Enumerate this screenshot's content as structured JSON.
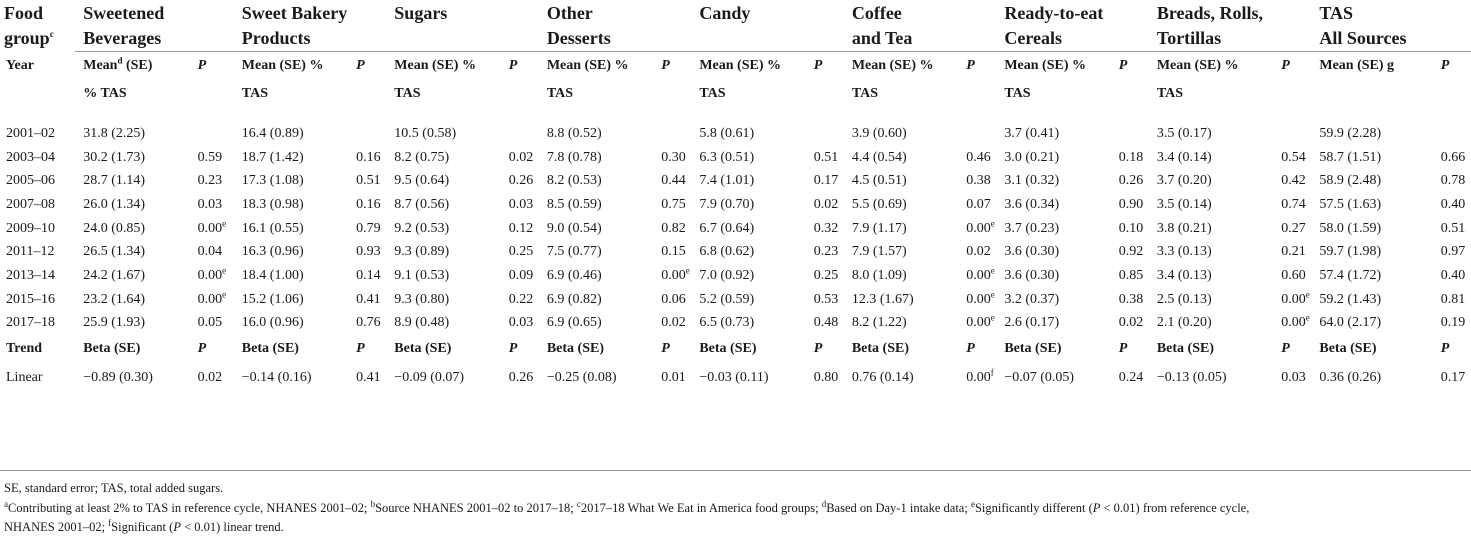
{
  "table": {
    "group_header": {
      "first_label_line1": "Food",
      "first_label_line2": "group",
      "first_label_sup": "c",
      "groups": [
        {
          "line1": "Sweetened",
          "line2": "Beverages"
        },
        {
          "line1": "Sweet Bakery",
          "line2": "Products"
        },
        {
          "line1": "Sugars",
          "line2": ""
        },
        {
          "line1": "Other",
          "line2": "Desserts"
        },
        {
          "line1": "Candy",
          "line2": ""
        },
        {
          "line1": "Coffee",
          "line2": "and Tea"
        },
        {
          "line1": "Ready-to-eat",
          "line2": "Cereals"
        },
        {
          "line1": "Breads, Rolls,",
          "line2": "Tortillas"
        },
        {
          "line1": "TAS",
          "line2": "All Sources"
        }
      ]
    },
    "subheader": {
      "year_label": "Year",
      "first_mean_line1": "Mean",
      "first_mean_sup": "d",
      "first_mean_line1_rest": " (SE)",
      "first_mean_line2": "% TAS",
      "mean_line1": "Mean (SE) %",
      "mean_line2": "TAS",
      "last_mean": "Mean (SE) g",
      "p_label": "P"
    },
    "rows": [
      {
        "year": "2001–02",
        "cells": [
          [
            "31.8 (2.25)",
            ""
          ],
          [
            "16.4 (0.89)",
            ""
          ],
          [
            "10.5 (0.58)",
            ""
          ],
          [
            "8.8 (0.52)",
            ""
          ],
          [
            "5.8 (0.61)",
            ""
          ],
          [
            "3.9 (0.60)",
            ""
          ],
          [
            "3.7 (0.41)",
            ""
          ],
          [
            "3.5 (0.17)",
            ""
          ],
          [
            "59.9 (2.28)",
            ""
          ]
        ]
      },
      {
        "year": "2003–04",
        "cells": [
          [
            "30.2 (1.73)",
            "0.59"
          ],
          [
            "18.7 (1.42)",
            "0.16"
          ],
          [
            "8.2 (0.75)",
            "0.02"
          ],
          [
            "7.8 (0.78)",
            "0.30"
          ],
          [
            "6.3 (0.51)",
            "0.51"
          ],
          [
            "4.4 (0.54)",
            "0.46"
          ],
          [
            "3.0 (0.21)",
            "0.18"
          ],
          [
            "3.4 (0.14)",
            "0.54"
          ],
          [
            "58.7 (1.51)",
            "0.66"
          ]
        ]
      },
      {
        "year": "2005–06",
        "cells": [
          [
            "28.7 (1.14)",
            "0.23"
          ],
          [
            "17.3 (1.08)",
            "0.51"
          ],
          [
            "9.5 (0.64)",
            "0.26"
          ],
          [
            "8.2 (0.53)",
            "0.44"
          ],
          [
            "7.4 (1.01)",
            "0.17"
          ],
          [
            "4.5 (0.51)",
            "0.38"
          ],
          [
            "3.1 (0.32)",
            "0.26"
          ],
          [
            "3.7 (0.20)",
            "0.42"
          ],
          [
            "58.9 (2.48)",
            "0.78"
          ]
        ]
      },
      {
        "year": "2007–08",
        "cells": [
          [
            "26.0 (1.34)",
            "0.03"
          ],
          [
            "18.3 (0.98)",
            "0.16"
          ],
          [
            "8.7 (0.56)",
            "0.03"
          ],
          [
            "8.5 (0.59)",
            "0.75"
          ],
          [
            "7.9 (0.70)",
            "0.02"
          ],
          [
            "5.5 (0.69)",
            "0.07"
          ],
          [
            "3.6 (0.34)",
            "0.90"
          ],
          [
            "3.5 (0.14)",
            "0.74"
          ],
          [
            "57.5 (1.63)",
            "0.40"
          ]
        ]
      },
      {
        "year": "2009–10",
        "cells": [
          [
            "24.0 (0.85)",
            "0.00",
            "e"
          ],
          [
            "16.1 (0.55)",
            "0.79"
          ],
          [
            "9.2 (0.53)",
            "0.12"
          ],
          [
            "9.0 (0.54)",
            "0.82"
          ],
          [
            "6.7 (0.64)",
            "0.32"
          ],
          [
            "7.9 (1.17)",
            "0.00",
            "e"
          ],
          [
            "3.7 (0.23)",
            "0.10"
          ],
          [
            "3.8 (0.21)",
            "0.27"
          ],
          [
            "58.0 (1.59)",
            "0.51"
          ]
        ]
      },
      {
        "year": "2011–12",
        "cells": [
          [
            "26.5 (1.34)",
            "0.04"
          ],
          [
            "16.3 (0.96)",
            "0.93"
          ],
          [
            "9.3 (0.89)",
            "0.25"
          ],
          [
            "7.5 (0.77)",
            "0.15"
          ],
          [
            "6.8 (0.62)",
            "0.23"
          ],
          [
            "7.9 (1.57)",
            "0.02"
          ],
          [
            "3.6 (0.30)",
            "0.92"
          ],
          [
            "3.3 (0.13)",
            "0.21"
          ],
          [
            "59.7 (1.98)",
            "0.97"
          ]
        ]
      },
      {
        "year": "2013–14",
        "cells": [
          [
            "24.2 (1.67)",
            "0.00",
            "e"
          ],
          [
            "18.4 (1.00)",
            "0.14"
          ],
          [
            "9.1 (0.53)",
            "0.09"
          ],
          [
            "6.9 (0.46)",
            "0.00",
            "e"
          ],
          [
            "7.0 (0.92)",
            "0.25"
          ],
          [
            "8.0 (1.09)",
            "0.00",
            "e"
          ],
          [
            "3.6 (0.30)",
            "0.85"
          ],
          [
            "3.4 (0.13)",
            "0.60"
          ],
          [
            "57.4 (1.72)",
            "0.40"
          ]
        ]
      },
      {
        "year": "2015–16",
        "cells": [
          [
            "23.2 (1.64)",
            "0.00",
            "e"
          ],
          [
            "15.2 (1.06)",
            "0.41"
          ],
          [
            "9.3 (0.80)",
            "0.22"
          ],
          [
            "6.9 (0.82)",
            "0.06"
          ],
          [
            "5.2 (0.59)",
            "0.53"
          ],
          [
            "12.3 (1.67)",
            "0.00",
            "e"
          ],
          [
            "3.2 (0.37)",
            "0.38"
          ],
          [
            "2.5 (0.13)",
            "0.00",
            "e"
          ],
          [
            "59.2 (1.43)",
            "0.81"
          ]
        ]
      },
      {
        "year": "2017–18",
        "cells": [
          [
            "25.9 (1.93)",
            "0.05"
          ],
          [
            "16.0 (0.96)",
            "0.76"
          ],
          [
            "8.9 (0.48)",
            "0.03"
          ],
          [
            "6.9 (0.65)",
            "0.02"
          ],
          [
            "6.5 (0.73)",
            "0.48"
          ],
          [
            "8.2 (1.22)",
            "0.00",
            "e"
          ],
          [
            "2.6 (0.17)",
            "0.02"
          ],
          [
            "2.1 (0.20)",
            "0.00",
            "e"
          ],
          [
            "64.0 (2.17)",
            "0.19"
          ]
        ]
      }
    ],
    "trend": {
      "label": "Trend",
      "beta_label": "Beta (SE)",
      "p_label": "P"
    },
    "linear": {
      "year": "Linear",
      "cells": [
        [
          "−0.89 (0.30)",
          "0.02"
        ],
        [
          "−0.14 (0.16)",
          "0.41"
        ],
        [
          "−0.09 (0.07)",
          "0.26"
        ],
        [
          "−0.25 (0.08)",
          "0.01"
        ],
        [
          "−0.03 (0.11)",
          "0.80"
        ],
        [
          "0.76 (0.14)",
          "0.00",
          "f"
        ],
        [
          "−0.07 (0.05)",
          "0.24"
        ],
        [
          "−0.13 (0.05)",
          "0.03"
        ],
        [
          "0.36 (0.26)",
          "0.17"
        ]
      ]
    }
  },
  "footnotes": {
    "abbrev": "SE, standard error; TAS, total added sugars.",
    "line1_parts": [
      {
        "sup": "a",
        "text": "Contributing at least 2% to TAS in reference cycle, NHANES 2001–02; "
      },
      {
        "sup": "b",
        "text": "Source NHANES 2001–02 to 2017–18; "
      },
      {
        "sup": "c",
        "text": "2017–18 What We Eat in America food groups; "
      },
      {
        "sup": "d",
        "text": "Based on Day-1 intake data; "
      },
      {
        "sup": "e",
        "text": "Significantly different ("
      }
    ],
    "line1_p": "P",
    "line1_tail": " < 0.01) from reference cycle,",
    "line2_head": "NHANES 2001–02; ",
    "line2_sup": "f",
    "line2_text": "Significant (",
    "line2_p": "P",
    "line2_tail": " < 0.01) linear trend."
  }
}
